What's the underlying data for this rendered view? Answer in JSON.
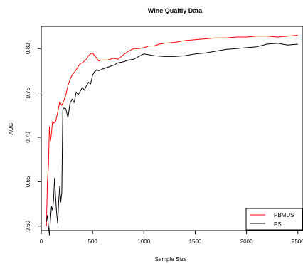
{
  "chart_data": {
    "type": "line",
    "title": "Wine Qualtiy Data",
    "xlabel": "Sample Size",
    "ylabel": "AUC",
    "xlim": [
      0,
      2550
    ],
    "ylim": [
      0.595,
      0.825
    ],
    "xticks": [
      0,
      500,
      1000,
      1500,
      2000,
      2500
    ],
    "yticks": [
      0.6,
      0.65,
      0.7,
      0.75,
      0.8
    ],
    "ytick_labels": [
      "0.60",
      "0.65",
      "0.70",
      "0.75",
      "0.80"
    ],
    "grid": false,
    "legend_position": "bottom-right",
    "series": [
      {
        "name": "PBMUS",
        "color": "#ff0000",
        "x": [
          50,
          60,
          70,
          80,
          90,
          100,
          110,
          120,
          140,
          160,
          180,
          200,
          220,
          240,
          260,
          280,
          300,
          320,
          340,
          360,
          380,
          400,
          420,
          440,
          460,
          480,
          500,
          520,
          540,
          560,
          580,
          600,
          650,
          700,
          750,
          800,
          850,
          900,
          950,
          1000,
          1050,
          1100,
          1150,
          1200,
          1300,
          1400,
          1500,
          1600,
          1700,
          1800,
          1900,
          2000,
          2100,
          2200,
          2300,
          2400,
          2500
        ],
        "y": [
          0.6,
          0.65,
          0.668,
          0.712,
          0.696,
          0.705,
          0.718,
          0.716,
          0.718,
          0.728,
          0.74,
          0.736,
          0.741,
          0.748,
          0.758,
          0.765,
          0.77,
          0.773,
          0.776,
          0.78,
          0.783,
          0.784,
          0.786,
          0.788,
          0.792,
          0.794,
          0.795,
          0.792,
          0.789,
          0.786,
          0.787,
          0.787,
          0.787,
          0.789,
          0.788,
          0.793,
          0.797,
          0.8,
          0.8,
          0.801,
          0.803,
          0.803,
          0.805,
          0.806,
          0.807,
          0.809,
          0.81,
          0.811,
          0.812,
          0.812,
          0.813,
          0.813,
          0.814,
          0.814,
          0.813,
          0.814,
          0.815
        ]
      },
      {
        "name": "PS",
        "color": "#000000",
        "x": [
          50,
          60,
          70,
          80,
          90,
          100,
          110,
          120,
          130,
          140,
          150,
          160,
          170,
          180,
          190,
          200,
          210,
          220,
          240,
          260,
          280,
          300,
          320,
          340,
          360,
          380,
          400,
          420,
          440,
          460,
          480,
          500,
          520,
          540,
          560,
          600,
          650,
          700,
          750,
          800,
          850,
          900,
          950,
          1000,
          1100,
          1200,
          1300,
          1400,
          1500,
          1600,
          1700,
          1800,
          1900,
          2000,
          2100,
          2200,
          2300,
          2400,
          2500
        ],
        "y": [
          0.605,
          0.612,
          0.6,
          0.59,
          0.608,
          0.622,
          0.618,
          0.63,
          0.654,
          0.632,
          0.615,
          0.603,
          0.628,
          0.645,
          0.627,
          0.638,
          0.731,
          0.733,
          0.732,
          0.722,
          0.738,
          0.743,
          0.739,
          0.751,
          0.748,
          0.752,
          0.756,
          0.753,
          0.758,
          0.762,
          0.76,
          0.77,
          0.774,
          0.776,
          0.775,
          0.777,
          0.779,
          0.781,
          0.784,
          0.785,
          0.787,
          0.788,
          0.791,
          0.794,
          0.792,
          0.791,
          0.791,
          0.792,
          0.794,
          0.795,
          0.797,
          0.799,
          0.8,
          0.801,
          0.802,
          0.805,
          0.806,
          0.804,
          0.805
        ]
      }
    ]
  }
}
